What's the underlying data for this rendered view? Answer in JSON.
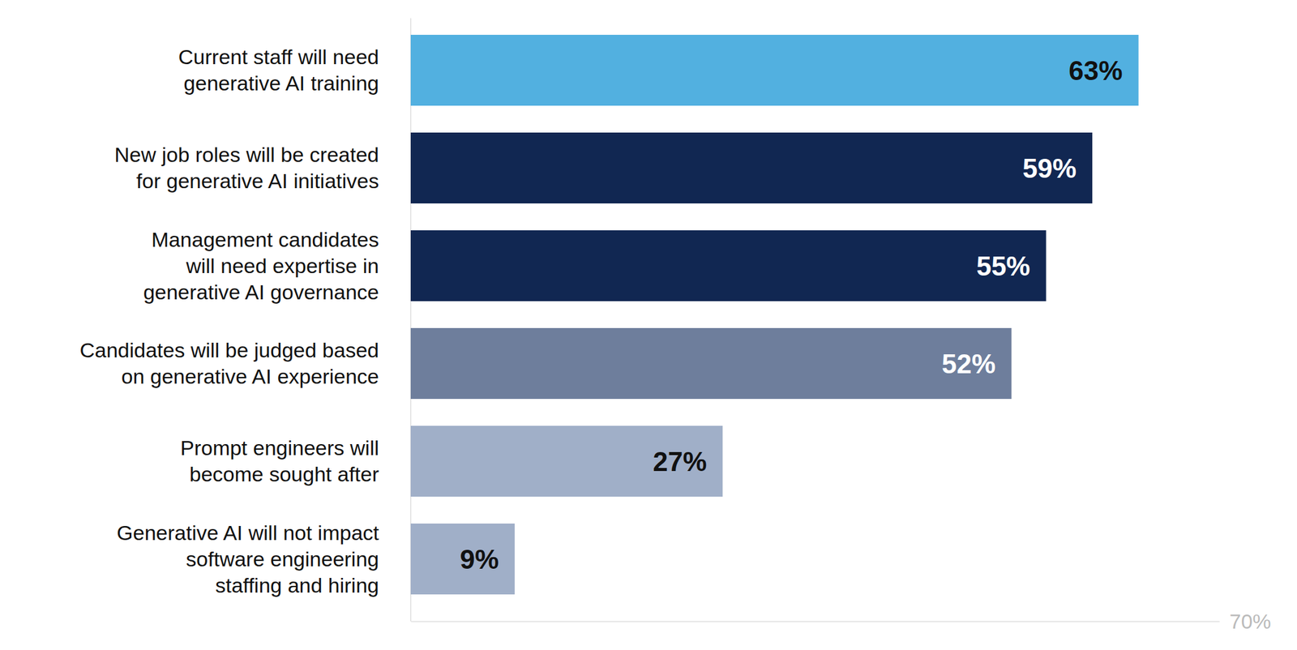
{
  "chart_data": {
    "type": "bar",
    "orientation": "horizontal",
    "categories": [
      "Current staff will need\ngenerative AI training",
      "New job roles will be created\nfor generative AI initiatives",
      "Management candidates\nwill need expertise in\ngenerative AI governance",
      "Candidates will be judged based\non generative AI experience",
      "Prompt engineers will\nbecome sought after",
      "Generative AI will not impact\nsoftware engineering\nstaffing and hiring"
    ],
    "values": [
      63,
      59,
      55,
      52,
      27,
      9
    ],
    "value_labels": [
      "63%",
      "59%",
      "55%",
      "52%",
      "27%",
      "9%"
    ],
    "colors": [
      "#52b0e0",
      "#112752",
      "#112752",
      "#6e7e9c",
      "#a0afc8",
      "#a0afc8"
    ],
    "xlim": [
      0,
      70
    ],
    "xticks": [
      {
        "value": 70,
        "label": "70%"
      }
    ],
    "data_labels": true
  }
}
